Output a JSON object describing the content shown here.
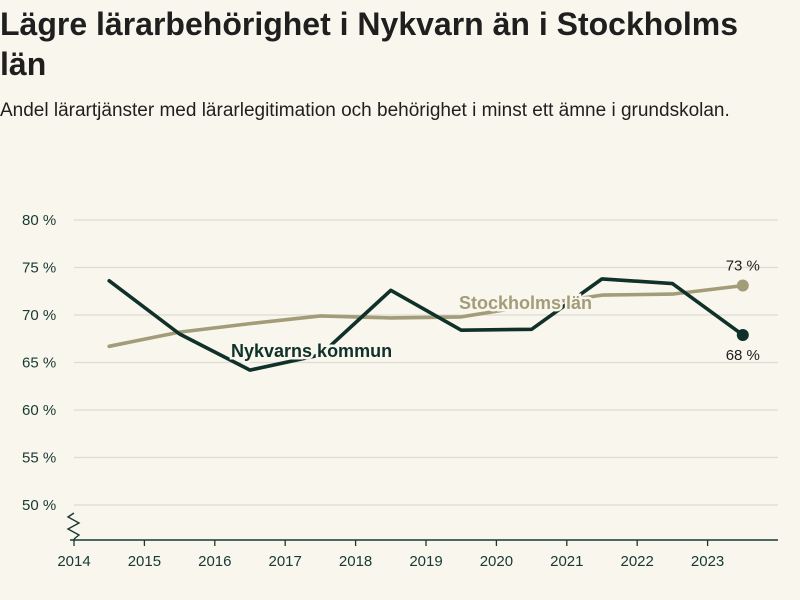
{
  "title": "Lägre lärarbehörighet i Nykvarn än i Stockholms län",
  "subtitle": "Andel lärartjänster med lärarlegitimation och behörighet i minst ett ämne i grundskolan.",
  "chart_data": {
    "type": "line",
    "x_tick_labels": [
      "2014",
      "2015",
      "2016",
      "2017",
      "2018",
      "2019",
      "2020",
      "2021",
      "2022",
      "2023"
    ],
    "y_tick_labels": [
      "50 %",
      "55 %",
      "60 %",
      "65 %",
      "70 %",
      "75 %",
      "80 %"
    ],
    "y_ticks": [
      50,
      55,
      60,
      65,
      70,
      75,
      80
    ],
    "ylim": [
      50,
      80
    ],
    "x_range": [
      2014,
      2024
    ],
    "grid": true,
    "axis_break": true,
    "series": [
      {
        "name": "Stockholms län",
        "color": "#a29d78",
        "x": [
          2014.5,
          2015.5,
          2016.5,
          2017.5,
          2018.5,
          2019.5,
          2020.5,
          2021.5,
          2022.5,
          2023.5
        ],
        "values": [
          66.7,
          68.2,
          69.1,
          69.9,
          69.7,
          69.8,
          71.0,
          72.1,
          72.2,
          73.1
        ],
        "end_label": "73 %"
      },
      {
        "name": "Nykvarns kommun",
        "color": "#0f3129",
        "x": [
          2014.5,
          2015.5,
          2016.5,
          2017.5,
          2018.5,
          2019.5,
          2020.5,
          2021.5,
          2022.5,
          2023.5
        ],
        "values": [
          73.6,
          68.0,
          64.2,
          65.8,
          72.6,
          68.4,
          68.5,
          73.8,
          73.3,
          67.9
        ],
        "end_label": "68 %"
      }
    ]
  }
}
